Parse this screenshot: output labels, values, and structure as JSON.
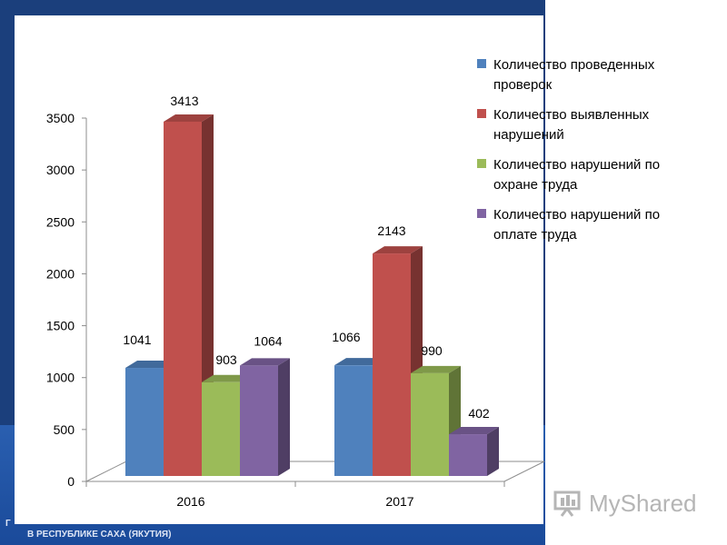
{
  "footer": {
    "left_fragment": "Г",
    "line": "В РЕСПУБЛИКЕ САХА (ЯКУТИЯ)"
  },
  "watermark": {
    "text": "MyShared"
  },
  "colors": {
    "series1": "#4f81bd",
    "series2": "#c0504d",
    "series3": "#9bbb59",
    "series4": "#8064a2"
  },
  "chart_data": {
    "type": "bar",
    "style": "3d-clustered-column",
    "categories": [
      "2016",
      "2017"
    ],
    "series": [
      {
        "name": "Количество проведенных проверок",
        "values": [
          1041,
          1066
        ]
      },
      {
        "name": "Количество выявленных нарушений",
        "values": [
          3413,
          2143
        ]
      },
      {
        "name": "Количество нарушений по охране труда",
        "values": [
          903,
          990
        ]
      },
      {
        "name": "Количество нарушений по оплате труда",
        "values": [
          1064,
          402
        ]
      }
    ],
    "ylim": [
      0,
      3500
    ],
    "yticks": [
      0,
      500,
      1000,
      1500,
      2000,
      2500,
      3000,
      3500
    ],
    "legend_position": "right-top",
    "grid": false
  }
}
